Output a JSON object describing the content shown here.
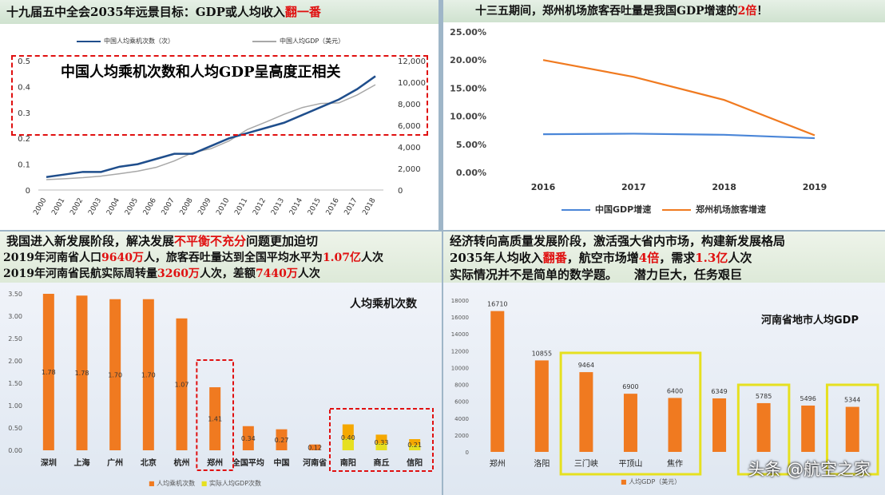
{
  "panels": {
    "top_left": {
      "title_main": "十九届五中全会2035年远景目标：GDP或人均收入",
      "title_red": "翻一番",
      "annotation": "中国人均乘机次数和人均GDP呈高度正相关",
      "legend_series1": "中国人均乘机次数（次）",
      "legend_series2": "中国人均GDP（美元）"
    },
    "top_right": {
      "title_main": "十三五期间，郑州机场旅客吞吐量是我国GDP增速的",
      "title_red": "2倍",
      "title_end": "！"
    },
    "bottom_left": {
      "line1": {
        "a": "我国进入新发展阶段，解决发展",
        "b": "不平衡不充分",
        "c": "问题更加迫切"
      },
      "line2": {
        "a": "2019年河南省人口",
        "b": "9640万",
        "c": "人，旅客吞吐量达到全国平均水平为",
        "d": "1.07亿",
        "e": "人次"
      },
      "line3": {
        "a": "2019年河南省民航实际周转量",
        "b": "3260万",
        "c": "人次，差额",
        "d": "7440万",
        "e": "人次"
      },
      "chart_title": "人均乘机次数",
      "legend1": "人均乘机次数",
      "legend2": "实际人均GDP次数"
    },
    "bottom_right": {
      "line1": "经济转向高质量发展阶段，激活强大省内市场，构建新发展格局",
      "line2": {
        "a": "2035年人均收入",
        "b": "翻番",
        "c": "，航空市场增",
        "d": "4倍",
        "e": "，需求",
        "f": "1.3亿",
        "g": "人次"
      },
      "line3": "实际情况并不是简单的数学题。    潜力巨大，任务艰巨",
      "chart_title": "河南省地市人均GDP",
      "legend": "人均GDP（美元）"
    }
  },
  "watermark": "头条 @航空之家",
  "colors": {
    "navy": "#1f4e8c",
    "gray": "#a8a8a8",
    "blue": "#4a86d8",
    "orange": "#f07a20",
    "red": "#e01010",
    "yellow": "#e6e020"
  },
  "chart_data": [
    {
      "type": "line",
      "x": [
        "2000",
        "2001",
        "2002",
        "2003",
        "2004",
        "2005",
        "2006",
        "2007",
        "2008",
        "2009",
        "2010",
        "2011",
        "2012",
        "2013",
        "2014",
        "2015",
        "2016",
        "2017",
        "2018"
      ],
      "series": [
        {
          "name": "中国人均乘机次数（次）",
          "values": [
            0.05,
            0.06,
            0.07,
            0.07,
            0.09,
            0.1,
            0.12,
            0.14,
            0.14,
            0.17,
            0.2,
            0.22,
            0.24,
            0.26,
            0.29,
            0.32,
            0.35,
            0.39,
            0.44
          ]
        },
        {
          "name": "中国人均GDP（美元）",
          "values": [
            960,
            1050,
            1150,
            1290,
            1510,
            1750,
            2100,
            2700,
            3470,
            3830,
            4560,
            5620,
            6300,
            7020,
            7650,
            8030,
            8080,
            8820,
            9770
          ]
        }
      ],
      "ylim": [
        0,
        0.5
      ],
      "y_ticks": [
        "0",
        "0.1",
        "0.2",
        "0.3",
        "0.4",
        "0.5"
      ],
      "y2lim": [
        0,
        12000
      ],
      "y2_ticks": [
        "0",
        "2,000",
        "4,000",
        "6,000",
        "8,000",
        "10,000",
        "12,000"
      ]
    },
    {
      "type": "line",
      "x": [
        "2016",
        "2017",
        "2018",
        "2019"
      ],
      "series": [
        {
          "name": "中国GDP增速",
          "values": [
            6.8,
            6.9,
            6.7,
            6.1
          ]
        },
        {
          "name": "郑州机场旅客增速",
          "values": [
            20.0,
            17.0,
            12.9,
            6.6
          ]
        }
      ],
      "ylim": [
        0,
        25
      ],
      "y_ticks": [
        "0.00%",
        "5.00%",
        "10.00%",
        "15.00%",
        "20.00%",
        "25.00%"
      ]
    },
    {
      "type": "bar",
      "title": "人均乘机次数",
      "categories": [
        "深圳",
        "上海",
        "广州",
        "北京",
        "杭州",
        "郑州",
        "全国平均",
        "中国",
        "河南省",
        "南阳",
        "商丘",
        "信阳"
      ],
      "values": [
        3.5,
        3.46,
        3.38,
        3.38,
        2.95,
        1.41,
        0.54,
        0.47,
        0.13,
        0.58,
        0.35,
        0.25
      ],
      "value_labels": [
        "1.78",
        "1.78",
        "1.70",
        "1.70",
        "1.07",
        "1.41",
        "0.34",
        "0.27",
        "0.12",
        "0.40",
        "0.33",
        "0.21"
      ],
      "y_ticks": [
        "0.00",
        "0.50",
        "1.00",
        "1.50",
        "2.00",
        "2.50",
        "3.00",
        "3.50"
      ],
      "ylim": [
        0,
        3.5
      ]
    },
    {
      "type": "bar",
      "title": "河南省地市人均GDP",
      "categories": [
        "郑州",
        "洛阳",
        "三门峡",
        "平顶山",
        "焦作",
        "",
        "",
        "",
        ""
      ],
      "values": [
        16710,
        10855,
        9464,
        6900,
        6400,
        6349,
        5785,
        5496,
        5344
      ],
      "value_labels": [
        "16710",
        "10855",
        "9464",
        "6900",
        "6400",
        "6349",
        "5785",
        "5496",
        "5344"
      ],
      "y_ticks": [
        "0",
        "2000",
        "4000",
        "6000",
        "8000",
        "10000",
        "12000",
        "14000",
        "16000",
        "18000"
      ],
      "ylim": [
        0,
        18000
      ]
    }
  ]
}
